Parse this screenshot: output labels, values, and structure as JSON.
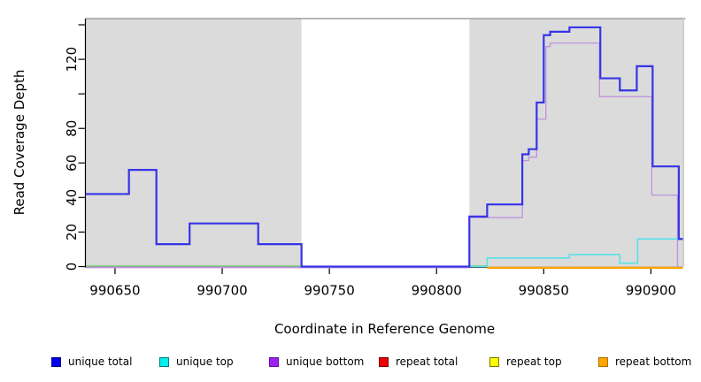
{
  "chart_data": {
    "type": "line",
    "subtype": "step-coverage-plot",
    "title": "",
    "xlabel": "Coordinate in Reference Genome",
    "ylabel": "Read Coverage Depth",
    "xlim": [
      990636.4,
      990914.9
    ],
    "ylim": [
      0,
      143.6
    ],
    "grid": false,
    "legend_position": "bottom",
    "panel_background": "#DBDBDB",
    "panel_top_border_color": "#8E8E8E",
    "x_ticks": {
      "values": [
        990650,
        990700,
        990750,
        990800,
        990850,
        990900
      ],
      "labels": [
        "990650",
        "990700",
        "990750",
        "990800",
        "990850",
        "990900"
      ]
    },
    "y_ticks": {
      "values": [
        0,
        20,
        40,
        60,
        80,
        100,
        120,
        140
      ],
      "labels": [
        "0",
        "20",
        "40",
        "60",
        "80",
        "",
        "120",
        ""
      ]
    },
    "shaded_regions": [
      [
        990636.4,
        990737
      ],
      [
        990815.3,
        990914.9
      ]
    ],
    "uncovered_white_region": [
      990737,
      990815.3
    ],
    "baseline_segments": [
      {
        "from": 990636.4,
        "to": 990737,
        "color": "#8CCF8C",
        "depth": 0
      },
      {
        "from": 990815.3,
        "to": 990823.6,
        "color": "#8CCF8C",
        "depth": 0
      }
    ],
    "series": [
      {
        "name": "repeat total",
        "color": "#EE0000",
        "points": []
      },
      {
        "name": "repeat top",
        "color": "#FFFF00",
        "points": []
      },
      {
        "name": "unique bottom",
        "color": "#BF93DF",
        "points": [
          [
            990636.4,
            0
          ],
          [
            990815.3,
            29
          ],
          [
            990840,
            62
          ],
          [
            990843,
            64
          ],
          [
            990846.7,
            86
          ],
          [
            990851,
            128
          ],
          [
            990853,
            130
          ],
          [
            990876,
            99
          ],
          [
            990900.4,
            42
          ],
          [
            990912.4,
            0.5
          ]
        ]
      },
      {
        "name": "unique top",
        "color": "#4FE3E8",
        "points": [
          [
            990815.3,
            0
          ],
          [
            990823.6,
            5
          ],
          [
            990862,
            7
          ],
          [
            990885.5,
            2
          ],
          [
            990893.8,
            16
          ]
        ]
      },
      {
        "name": "repeat bottom",
        "color": "#FFA500",
        "points": [
          [
            990823.6,
            0
          ]
        ]
      },
      {
        "name": "unique total",
        "color": "#3634E8",
        "points": [
          [
            990636.4,
            42
          ],
          [
            990656.5,
            56
          ],
          [
            990669.3,
            13
          ],
          [
            990684.8,
            25
          ],
          [
            990716.8,
            13
          ],
          [
            990737,
            0
          ],
          [
            990815.3,
            29
          ],
          [
            990823.6,
            36
          ],
          [
            990840,
            65
          ],
          [
            990843,
            68
          ],
          [
            990846.7,
            95
          ],
          [
            990850,
            134
          ],
          [
            990853,
            136
          ],
          [
            990862,
            138.5
          ],
          [
            990876.4,
            109
          ],
          [
            990885.5,
            102
          ],
          [
            990893.4,
            116
          ],
          [
            990900.8,
            58
          ],
          [
            990913,
            16
          ]
        ]
      }
    ],
    "legend": {
      "items": [
        {
          "label": "unique total",
          "fill": "#0000EE",
          "border": "#00007A"
        },
        {
          "label": "unique top",
          "fill": "#00EEEE",
          "border": "#007A7A"
        },
        {
          "label": "unique bottom",
          "fill": "#A020F0",
          "border": "#5E12A0"
        },
        {
          "label": "repeat total",
          "fill": "#EE0000",
          "border": "#7A0000"
        },
        {
          "label": "repeat top",
          "fill": "#FFFF00",
          "border": "#7A7A00"
        },
        {
          "label": "repeat bottom",
          "fill": "#FFA500",
          "border": "#B36B00"
        }
      ]
    }
  }
}
